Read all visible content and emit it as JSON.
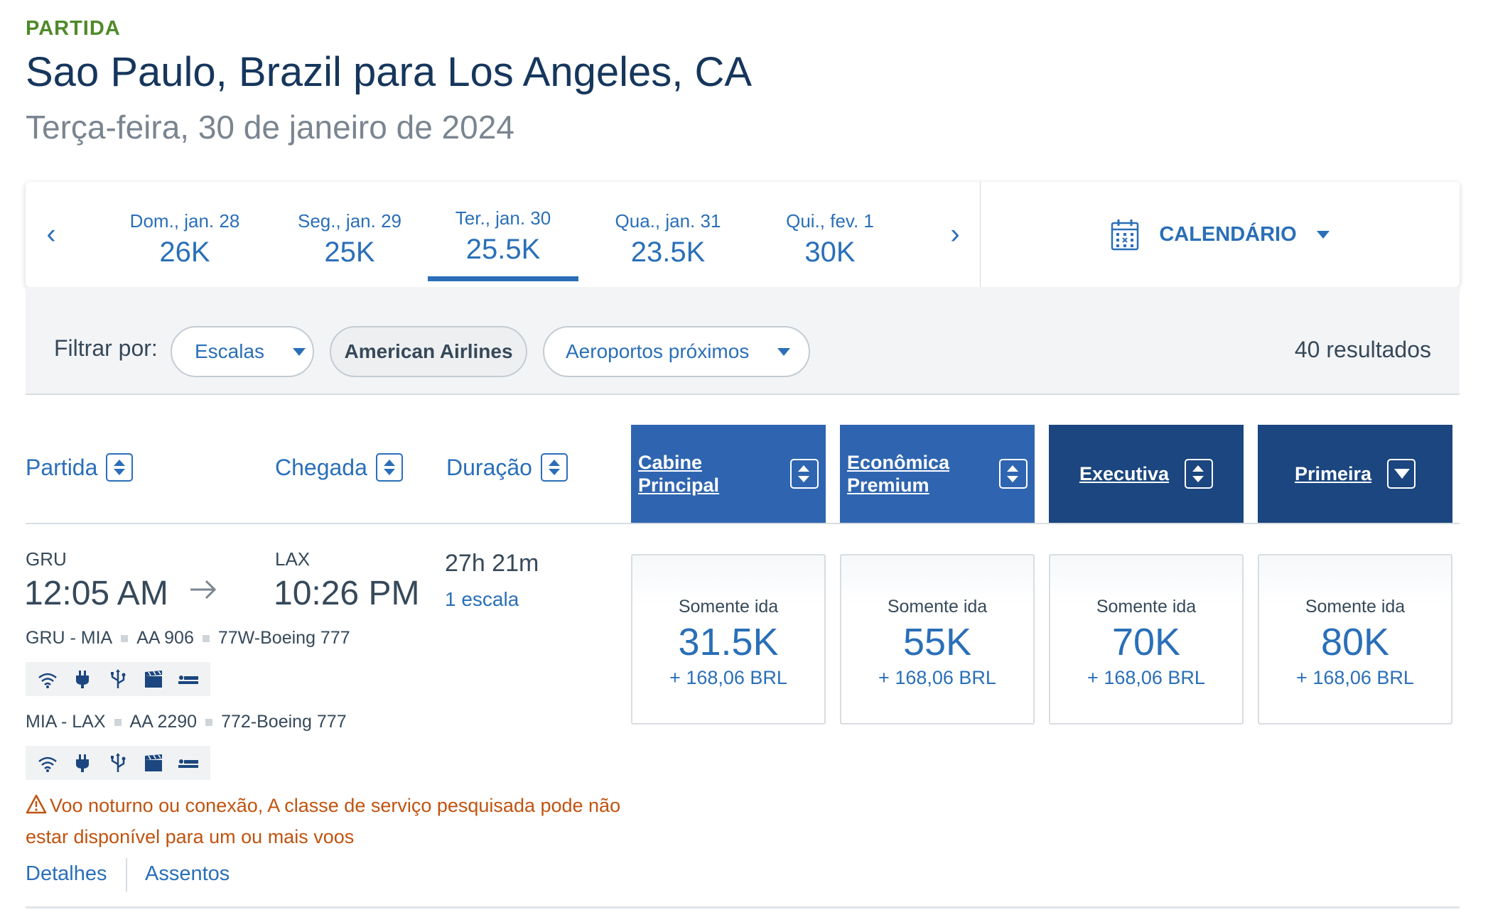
{
  "header": {
    "eyebrow": "PARTIDA",
    "title": "Sao Paulo, Brazil para Los Angeles, CA",
    "date": "Terça-feira, 30 de janeiro de 2024"
  },
  "date_strip": {
    "days": [
      {
        "label": "Dom., jan. 28",
        "price": "26K"
      },
      {
        "label": "Seg., jan. 29",
        "price": "25K"
      },
      {
        "label": "Ter., jan. 30",
        "price": "25.5K",
        "selected": true
      },
      {
        "label": "Qua., jan. 31",
        "price": "23.5K"
      },
      {
        "label": "Qui., fev. 1",
        "price": "30K"
      }
    ],
    "prev_arrow": "‹",
    "next_arrow": "›",
    "calendar_label": "CALENDÁRIO"
  },
  "filters": {
    "label": "Filtrar por:",
    "stops": "Escalas",
    "airline": "American Airlines",
    "airports": "Aeroportos próximos",
    "result_count": "40 resultados"
  },
  "columns": {
    "departure": "Partida",
    "arrival": "Chegada",
    "duration": "Duração",
    "cabins": [
      {
        "line1": "Cabine",
        "line2": "Principal"
      },
      {
        "line1": "Econômica",
        "line2": "Premium"
      },
      {
        "line1": "Executiva",
        "line2": ""
      },
      {
        "line1": "Primeira",
        "line2": ""
      }
    ]
  },
  "flight": {
    "origin": "GRU",
    "destination": "LAX",
    "depart_time": "12:05 AM",
    "arrive_time": "10:26 PM",
    "duration": "27h 21m",
    "stops": "1 escala",
    "segments": [
      {
        "route": "GRU - MIA",
        "flight": "AA 906",
        "aircraft": "77W-Boeing 777"
      },
      {
        "route": "MIA - LAX",
        "flight": "AA 2290",
        "aircraft": "772-Boeing 777"
      }
    ],
    "amenities": [
      "wifi-icon",
      "power-outlet-icon",
      "usb-icon",
      "entertainment-icon",
      "lie-flat-seat-icon"
    ],
    "warning": "Voo noturno ou conexão, A classe de serviço pesquisada pode não estar disponível para um ou mais voos",
    "details_link": "Detalhes",
    "seats_link": "Assentos",
    "fares": [
      {
        "type": "Somente ida",
        "miles": "31.5K",
        "tax": "+ 168,06 BRL"
      },
      {
        "type": "Somente ida",
        "miles": "55K",
        "tax": "+ 168,06 BRL"
      },
      {
        "type": "Somente ida",
        "miles": "70K",
        "tax": "+ 168,06 BRL"
      },
      {
        "type": "Somente ida",
        "miles": "80K",
        "tax": "+ 168,06 BRL"
      }
    ]
  },
  "colors": {
    "accent_blue": "#2a6fb8",
    "cabin_light": "#2f65b0",
    "cabin_dark": "#1b467f",
    "warning": "#c0530f",
    "eyebrow_green": "#4f8a2a"
  }
}
